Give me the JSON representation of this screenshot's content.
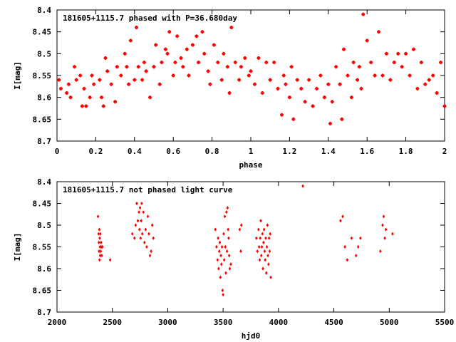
{
  "chart_data": [
    {
      "type": "scatter",
      "title": "181605+1115.7 phased with P=36.680day",
      "xlabel": "phase",
      "ylabel": "I[mag]",
      "xlim": [
        0,
        2
      ],
      "ylim": [
        8.4,
        8.7
      ],
      "y_inverted": true,
      "x_ticks": [
        "0",
        "0.2",
        "0.4",
        "0.6",
        "0.8",
        "1",
        "1.2",
        "1.4",
        "1.6",
        "1.8",
        "2"
      ],
      "y_ticks": [
        "8.4",
        "8.45",
        "8.5",
        "8.55",
        "8.6",
        "8.65",
        "8.7"
      ],
      "marker": "plus",
      "color": "#ff0000",
      "x": [
        0.01,
        0.02,
        0.05,
        0.06,
        0.07,
        0.09,
        0.1,
        0.12,
        0.13,
        0.14,
        0.15,
        0.17,
        0.18,
        0.19,
        0.22,
        0.23,
        0.24,
        0.25,
        0.26,
        0.28,
        0.3,
        0.31,
        0.33,
        0.35,
        0.36,
        0.37,
        0.38,
        0.4,
        0.41,
        0.42,
        0.44,
        0.45,
        0.46,
        0.48,
        0.5,
        0.51,
        0.53,
        0.54,
        0.56,
        0.57,
        0.58,
        0.6,
        0.61,
        0.62,
        0.64,
        0.65,
        0.67,
        0.68,
        0.7,
        0.72,
        0.73,
        0.75,
        0.76,
        0.78,
        0.79,
        0.81,
        0.83,
        0.85,
        0.86,
        0.88,
        0.89,
        0.9,
        0.92,
        0.94,
        0.95,
        0.97,
        0.99,
        1.0,
        1.02,
        1.04,
        1.06,
        1.08,
        1.1,
        1.12,
        1.14,
        1.16,
        1.17,
        1.18,
        1.2,
        1.21,
        1.22,
        1.24,
        1.26,
        1.28,
        1.3,
        1.32,
        1.34,
        1.36,
        1.38,
        1.4,
        1.41,
        1.42,
        1.44,
        1.46,
        1.47,
        1.48,
        1.5,
        1.52,
        1.53,
        1.55,
        1.56,
        1.57,
        1.58,
        1.6,
        1.62,
        1.64,
        1.66,
        1.68,
        1.7,
        1.72,
        1.74,
        1.76,
        1.78,
        1.8,
        1.82,
        1.84,
        1.86,
        1.88,
        1.9,
        1.92,
        1.94,
        1.96,
        1.98,
        2.0
      ],
      "y": [
        8.56,
        8.58,
        8.59,
        8.57,
        8.6,
        8.53,
        8.56,
        8.55,
        8.62,
        8.58,
        8.62,
        8.6,
        8.55,
        8.57,
        8.56,
        8.6,
        8.62,
        8.51,
        8.54,
        8.57,
        8.61,
        8.53,
        8.55,
        8.5,
        8.53,
        8.57,
        8.47,
        8.56,
        8.44,
        8.53,
        8.56,
        8.52,
        8.54,
        8.6,
        8.53,
        8.48,
        8.57,
        8.52,
        8.49,
        8.5,
        8.45,
        8.55,
        8.52,
        8.46,
        8.51,
        8.53,
        8.49,
        8.55,
        8.48,
        8.46,
        8.52,
        8.45,
        8.5,
        8.54,
        8.57,
        8.48,
        8.52,
        8.56,
        8.5,
        8.53,
        8.59,
        8.44,
        8.52,
        8.56,
        8.53,
        8.51,
        8.55,
        8.54,
        8.57,
        8.51,
        8.59,
        8.52,
        8.56,
        8.52,
        8.58,
        8.64,
        8.55,
        8.57,
        8.6,
        8.53,
        8.65,
        8.56,
        8.58,
        8.61,
        8.56,
        8.62,
        8.58,
        8.55,
        8.6,
        8.57,
        8.66,
        8.61,
        8.53,
        8.57,
        8.65,
        8.49,
        8.55,
        8.6,
        8.52,
        8.56,
        8.53,
        8.58,
        8.41,
        8.47,
        8.52,
        8.55,
        8.45,
        8.55,
        8.5,
        8.56,
        8.52,
        8.5,
        8.53,
        8.5,
        8.55,
        8.49,
        8.58,
        8.52,
        8.57,
        8.56,
        8.55,
        8.59,
        8.52,
        8.62
      ]
    },
    {
      "type": "scatter",
      "title": "181605+1115.7 not phased light curve",
      "xlabel": "hjd0",
      "ylabel": "I[mag]",
      "xlim": [
        2000,
        5500
      ],
      "ylim": [
        8.4,
        8.7
      ],
      "y_inverted": true,
      "x_ticks": [
        "2000",
        "2500",
        "3000",
        "3500",
        "4000",
        "4500",
        "5000",
        "5500"
      ],
      "y_ticks": [
        "8.4",
        "8.45",
        "8.5",
        "8.55",
        "8.6",
        "8.65",
        "8.7"
      ],
      "marker": "diamond",
      "color": "#ff0000",
      "x": [
        2370,
        2375,
        2378,
        2380,
        2382,
        2384,
        2386,
        2388,
        2390,
        2392,
        2395,
        2398,
        2400,
        2405,
        2410,
        2480,
        2680,
        2700,
        2710,
        2720,
        2730,
        2740,
        2745,
        2750,
        2755,
        2760,
        2765,
        2770,
        2780,
        2790,
        2800,
        2810,
        2820,
        2830,
        2840,
        2850,
        2860,
        2870,
        3430,
        3440,
        3450,
        3455,
        3460,
        3465,
        3470,
        3475,
        3480,
        3485,
        3490,
        3495,
        3500,
        3505,
        3510,
        3515,
        3520,
        3525,
        3530,
        3535,
        3540,
        3545,
        3550,
        3555,
        3560,
        3570,
        3650,
        3660,
        3665,
        3800,
        3810,
        3820,
        3825,
        3830,
        3835,
        3840,
        3845,
        3850,
        3855,
        3860,
        3865,
        3870,
        3875,
        3880,
        3885,
        3890,
        3895,
        3900,
        3905,
        3910,
        3915,
        3920,
        3925,
        3930,
        4220,
        4560,
        4580,
        4600,
        4620,
        4660,
        4700,
        4720,
        4740,
        4920,
        4940,
        4950,
        4960,
        4970,
        5030
      ],
      "y": [
        8.48,
        8.52,
        8.54,
        8.56,
        8.51,
        8.58,
        8.53,
        8.55,
        8.57,
        8.52,
        8.56,
        8.54,
        8.55,
        8.57,
        8.55,
        8.58,
        8.52,
        8.53,
        8.5,
        8.45,
        8.49,
        8.47,
        8.51,
        8.46,
        8.53,
        8.49,
        8.45,
        8.52,
        8.47,
        8.54,
        8.51,
        8.55,
        8.48,
        8.52,
        8.57,
        8.56,
        8.5,
        8.53,
        8.51,
        8.55,
        8.58,
        8.53,
        8.6,
        8.56,
        8.54,
        8.62,
        8.57,
        8.59,
        8.55,
        8.65,
        8.66,
        8.52,
        8.58,
        8.48,
        8.55,
        8.61,
        8.47,
        8.56,
        8.46,
        8.51,
        8.53,
        8.57,
        8.6,
        8.59,
        8.51,
        8.56,
        8.5,
        8.53,
        8.56,
        8.51,
        8.55,
        8.58,
        8.53,
        8.49,
        8.57,
        8.55,
        8.52,
        8.6,
        8.54,
        8.51,
        8.56,
        8.58,
        8.53,
        8.61,
        8.55,
        8.5,
        8.57,
        8.59,
        8.53,
        8.56,
        8.52,
        8.62,
        8.41,
        8.49,
        8.48,
        8.55,
        8.58,
        8.53,
        8.57,
        8.55,
        8.53,
        8.56,
        8.5,
        8.48,
        8.53,
        8.51,
        8.52
      ]
    }
  ]
}
